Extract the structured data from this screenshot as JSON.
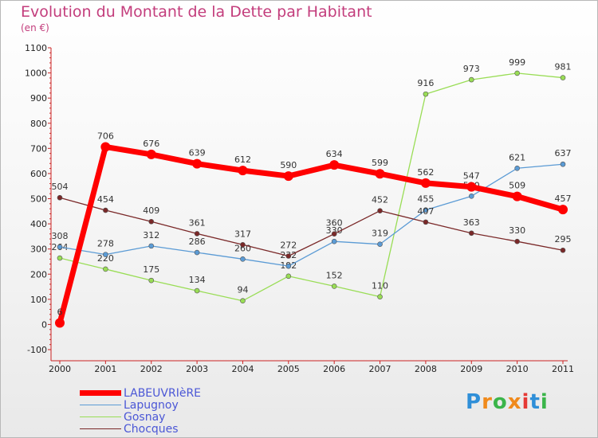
{
  "chart_data": {
    "type": "line",
    "title": "Evolution du Montant de la Dette par Habitant",
    "subtitle": "(en €)",
    "x": [
      "2000",
      "2001",
      "2002",
      "2003",
      "2004",
      "2005",
      "2006",
      "2007",
      "2008",
      "2009",
      "2010",
      "2011"
    ],
    "ylim": [
      -100,
      1100
    ],
    "yticks": [
      -100,
      0,
      100,
      200,
      300,
      400,
      500,
      600,
      700,
      800,
      900,
      1000,
      1100
    ],
    "grid": false,
    "legend_position": "bottom-left",
    "series": [
      {
        "name": "LABEUVRIèRE",
        "color": "#ff0000",
        "values": [
          6,
          706,
          676,
          639,
          612,
          590,
          634,
          599,
          562,
          547,
          509,
          457
        ]
      },
      {
        "name": "Lapugnoy",
        "color": "#5b9bd5",
        "values": [
          308,
          278,
          312,
          286,
          260,
          232,
          330,
          319,
          455,
          510,
          621,
          637
        ]
      },
      {
        "name": "Gosnay",
        "color": "#99dd55",
        "values": [
          264,
          220,
          175,
          134,
          94,
          192,
          152,
          110,
          916,
          973,
          999,
          981
        ]
      },
      {
        "name": "Chocques",
        "color": "#7a2828",
        "values": [
          504,
          454,
          409,
          361,
          317,
          272,
          360,
          452,
          407,
          363,
          330,
          295
        ]
      }
    ]
  },
  "logo": {
    "letters": [
      "P",
      "r",
      "o",
      "x",
      "i",
      "t",
      "i"
    ],
    "colors": [
      "#2f8fd8",
      "#f08a1c",
      "#3bb54a",
      "#f08a1c",
      "#e53935",
      "#2f8fd8",
      "#3bb54a"
    ]
  }
}
